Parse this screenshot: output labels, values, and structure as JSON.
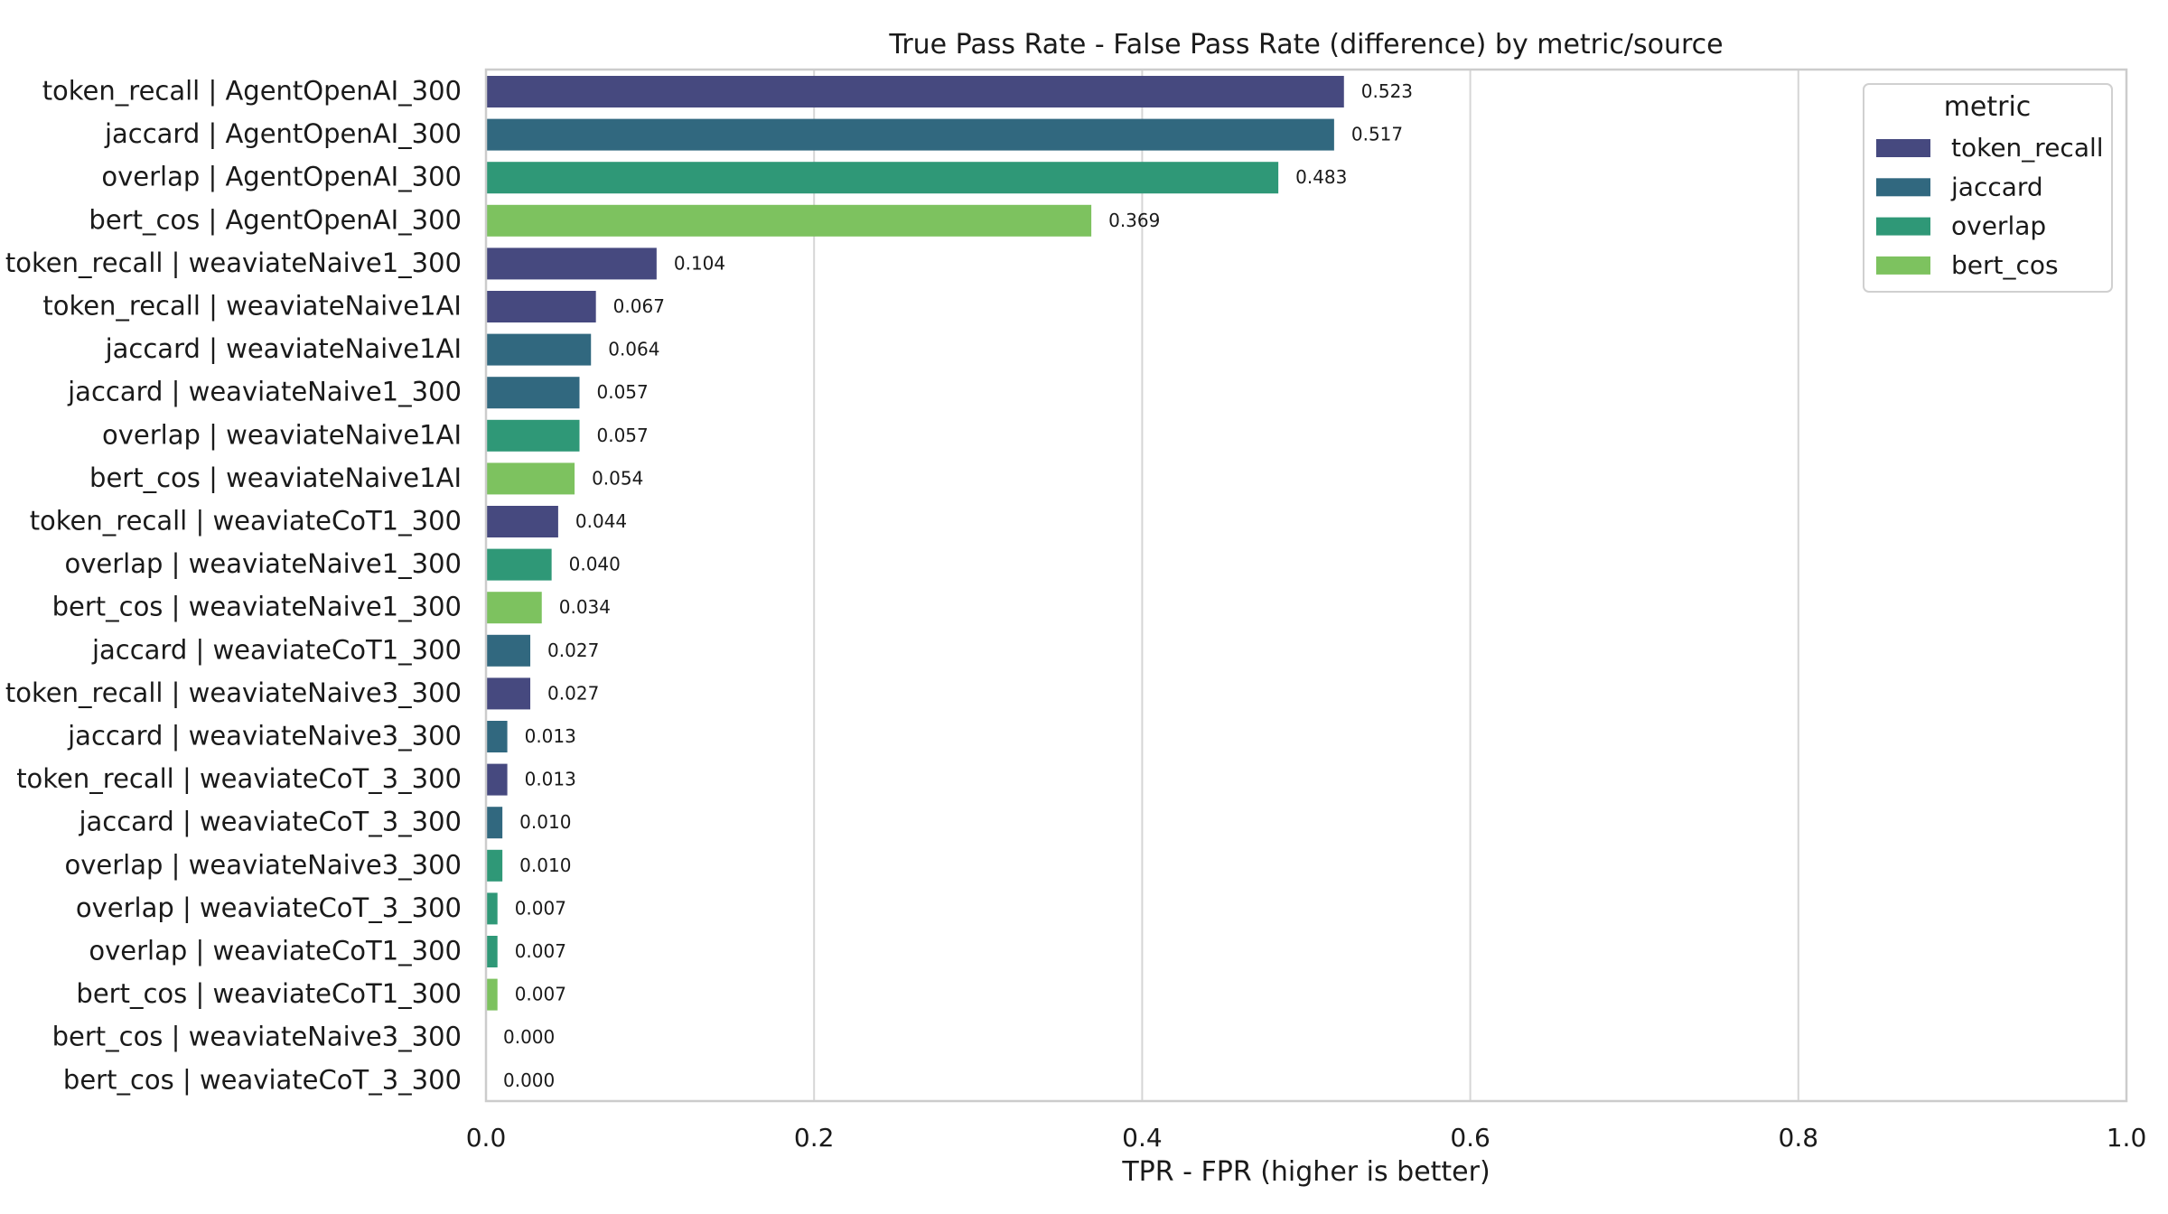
{
  "chart_data": {
    "type": "bar",
    "orientation": "horizontal",
    "title": "True Pass Rate - False Pass Rate (difference) by metric/source",
    "xlabel": "TPR - FPR (higher is better)",
    "ylabel": "",
    "xlim": [
      0.0,
      1.0
    ],
    "xticks": [
      "0.0",
      "0.2",
      "0.4",
      "0.6",
      "0.8",
      "1.0"
    ],
    "grid": "vertical",
    "legend": {
      "title": "metric",
      "placement": "top-right",
      "entries": [
        {
          "name": "token_recall",
          "color": "#46497f"
        },
        {
          "name": "jaccard",
          "color": "#31687f"
        },
        {
          "name": "overlap",
          "color": "#2f9877"
        },
        {
          "name": "bert_cos",
          "color": "#7dc25f"
        }
      ]
    },
    "bars": [
      {
        "category": "token_recall | AgentOpenAI_300",
        "metric": "token_recall",
        "value": 0.523,
        "label": "0.523"
      },
      {
        "category": "jaccard | AgentOpenAI_300",
        "metric": "jaccard",
        "value": 0.517,
        "label": "0.517"
      },
      {
        "category": "overlap | AgentOpenAI_300",
        "metric": "overlap",
        "value": 0.483,
        "label": "0.483"
      },
      {
        "category": "bert_cos | AgentOpenAI_300",
        "metric": "bert_cos",
        "value": 0.369,
        "label": "0.369"
      },
      {
        "category": "token_recall | weaviateNaive1_300",
        "metric": "token_recall",
        "value": 0.104,
        "label": "0.104"
      },
      {
        "category": "token_recall | weaviateNaive1AI",
        "metric": "token_recall",
        "value": 0.067,
        "label": "0.067"
      },
      {
        "category": "jaccard | weaviateNaive1AI",
        "metric": "jaccard",
        "value": 0.064,
        "label": "0.064"
      },
      {
        "category": "jaccard | weaviateNaive1_300",
        "metric": "jaccard",
        "value": 0.057,
        "label": "0.057"
      },
      {
        "category": "overlap | weaviateNaive1AI",
        "metric": "overlap",
        "value": 0.057,
        "label": "0.057"
      },
      {
        "category": "bert_cos | weaviateNaive1AI",
        "metric": "bert_cos",
        "value": 0.054,
        "label": "0.054"
      },
      {
        "category": "token_recall | weaviateCoT1_300",
        "metric": "token_recall",
        "value": 0.044,
        "label": "0.044"
      },
      {
        "category": "overlap | weaviateNaive1_300",
        "metric": "overlap",
        "value": 0.04,
        "label": "0.040"
      },
      {
        "category": "bert_cos | weaviateNaive1_300",
        "metric": "bert_cos",
        "value": 0.034,
        "label": "0.034"
      },
      {
        "category": "jaccard | weaviateCoT1_300",
        "metric": "jaccard",
        "value": 0.027,
        "label": "0.027"
      },
      {
        "category": "token_recall | weaviateNaive3_300",
        "metric": "token_recall",
        "value": 0.027,
        "label": "0.027"
      },
      {
        "category": "jaccard | weaviateNaive3_300",
        "metric": "jaccard",
        "value": 0.013,
        "label": "0.013"
      },
      {
        "category": "token_recall | weaviateCoT_3_300",
        "metric": "token_recall",
        "value": 0.013,
        "label": "0.013"
      },
      {
        "category": "jaccard | weaviateCoT_3_300",
        "metric": "jaccard",
        "value": 0.01,
        "label": "0.010"
      },
      {
        "category": "overlap | weaviateNaive3_300",
        "metric": "overlap",
        "value": 0.01,
        "label": "0.010"
      },
      {
        "category": "overlap | weaviateCoT_3_300",
        "metric": "overlap",
        "value": 0.007,
        "label": "0.007"
      },
      {
        "category": "overlap | weaviateCoT1_300",
        "metric": "overlap",
        "value": 0.007,
        "label": "0.007"
      },
      {
        "category": "bert_cos | weaviateCoT1_300",
        "metric": "bert_cos",
        "value": 0.007,
        "label": "0.007"
      },
      {
        "category": "bert_cos | weaviateNaive3_300",
        "metric": "bert_cos",
        "value": 0.0,
        "label": "0.000"
      },
      {
        "category": "bert_cos | weaviateCoT_3_300",
        "metric": "bert_cos",
        "value": 0.0,
        "label": "0.000"
      }
    ]
  }
}
